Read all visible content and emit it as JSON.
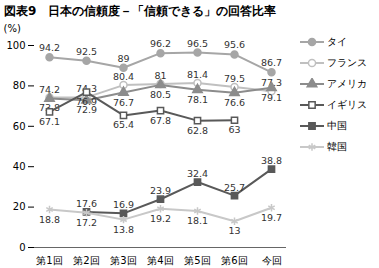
{
  "chart_data": {
    "type": "line",
    "title": "図表9　日本の信頼度－「信頼できる」の回答比率",
    "y_label": "(%)",
    "categories": [
      "第1回",
      "第2回",
      "第3回",
      "第4回",
      "第5回",
      "第6回",
      "今回"
    ],
    "series": [
      {
        "name": "タイ",
        "color": "#a6a6a6",
        "marker": "circle",
        "values": [
          94.2,
          92.5,
          89.0,
          96.2,
          96.5,
          95.6,
          86.7
        ]
      },
      {
        "name": "フランス",
        "color": "#c0c0c0",
        "marker": "circle-open",
        "values": [
          74.2,
          74.3,
          80.4,
          81.0,
          81.4,
          79.5,
          77.3
        ]
      },
      {
        "name": "アメリカ",
        "color": "#8c8c8c",
        "marker": "triangle",
        "values": [
          73.8,
          72.9,
          76.7,
          80.5,
          78.1,
          76.6,
          79.1
        ]
      },
      {
        "name": "イギリス",
        "color": "#595959",
        "marker": "square-open",
        "values": [
          67.1,
          76.9,
          65.4,
          67.8,
          62.8,
          63.0,
          null
        ]
      },
      {
        "name": "中国",
        "color": "#595959",
        "marker": "square",
        "values": [
          null,
          17.6,
          16.9,
          23.9,
          32.4,
          25.7,
          38.8
        ]
      },
      {
        "name": "韓国",
        "color": "#c8c8c8",
        "marker": "asterisk",
        "values": [
          18.8,
          17.2,
          13.8,
          19.2,
          18.1,
          13.0,
          19.7
        ]
      }
    ],
    "ylim": [
      0,
      100
    ],
    "yticks": [
      0,
      20,
      40,
      60,
      80,
      100
    ],
    "grid": false,
    "data_labels": true,
    "legend": "right"
  }
}
